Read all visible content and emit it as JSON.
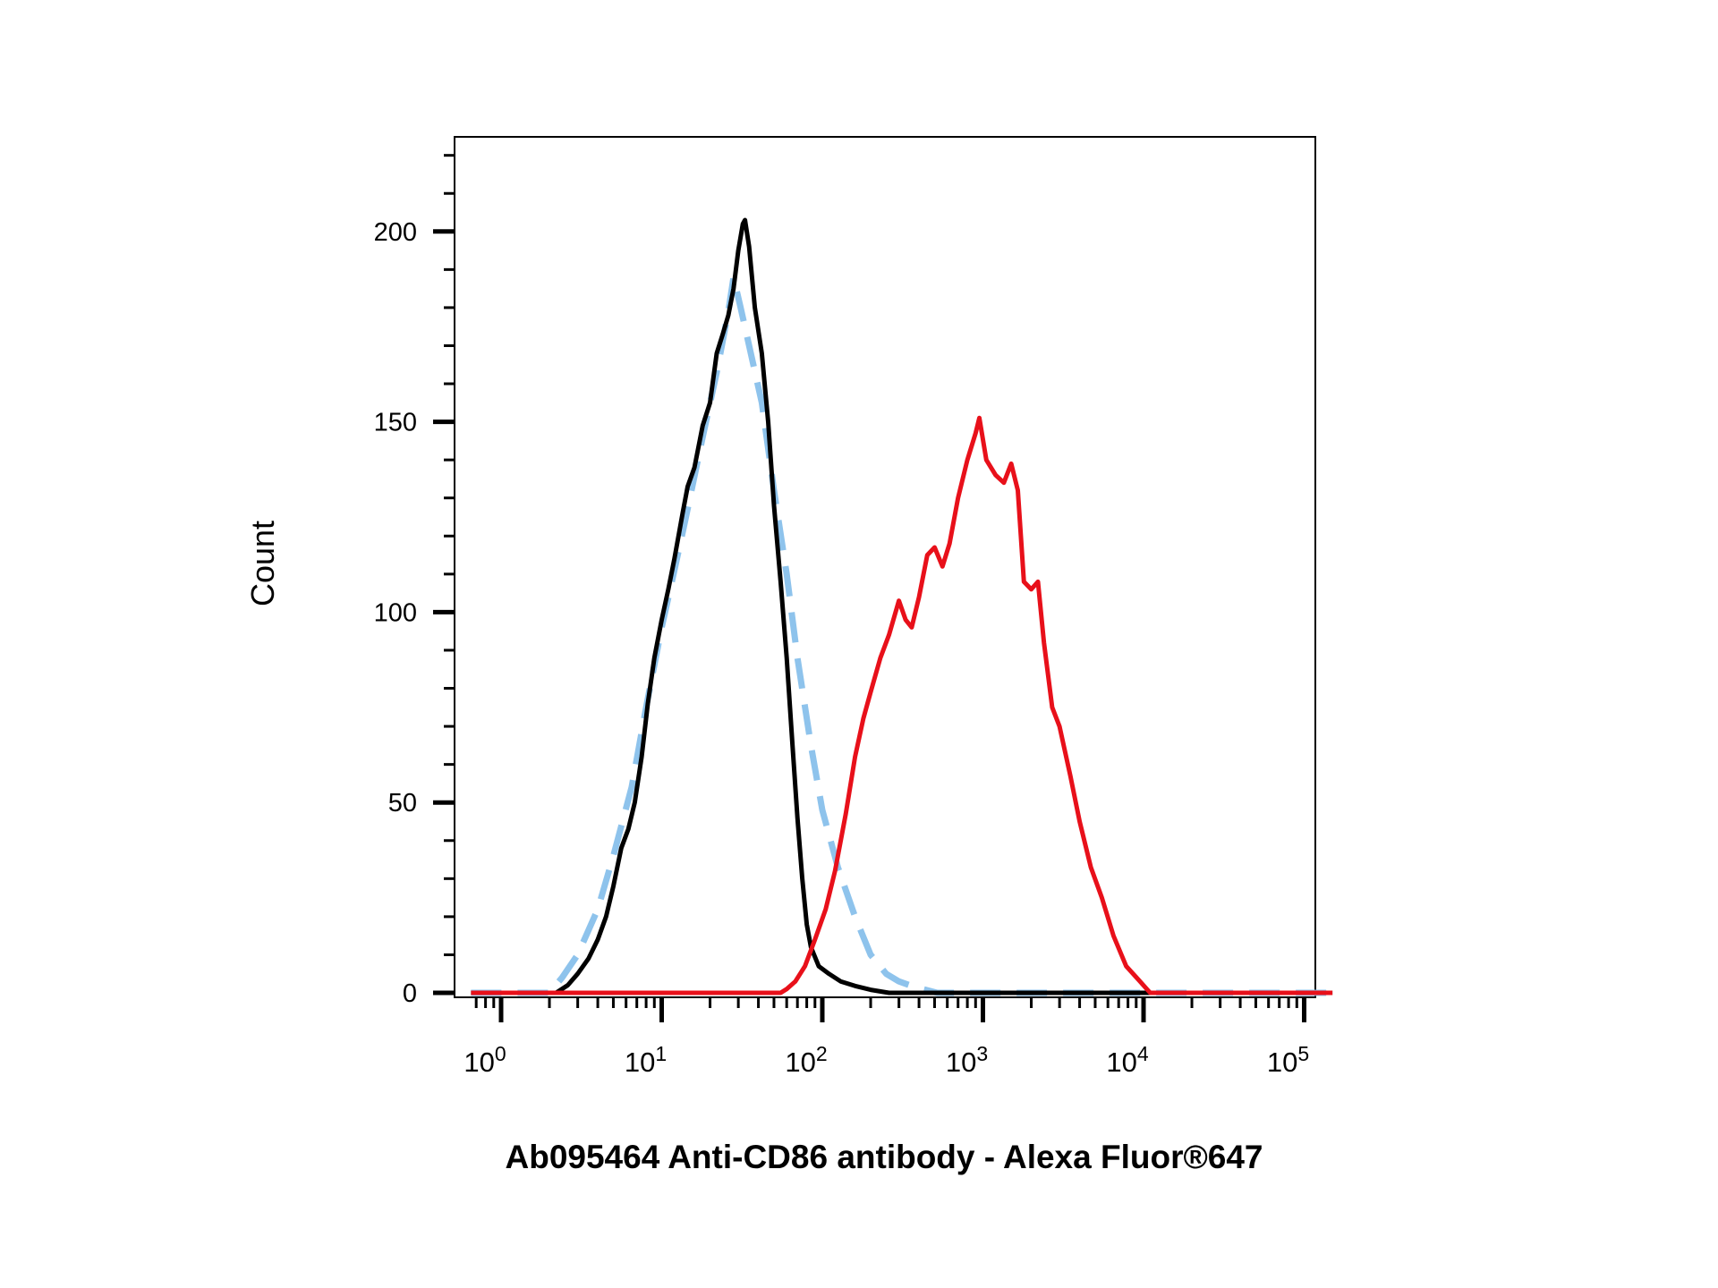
{
  "chart_data": {
    "type": "line",
    "title": "",
    "xlabel": "Ab095464 Anti-CD86 antibody - Alexa Fluor®647",
    "ylabel": "Count",
    "x_scale": "log",
    "xlim": [
      0.65,
      150000
    ],
    "ylim": [
      0,
      225
    ],
    "grid": false,
    "legend": "none",
    "x_ticks": [
      {
        "value": 1,
        "base": "10",
        "exp": "0"
      },
      {
        "value": 10,
        "base": "10",
        "exp": "1"
      },
      {
        "value": 100,
        "base": "10",
        "exp": "2"
      },
      {
        "value": 1000,
        "base": "10",
        "exp": "3"
      },
      {
        "value": 10000,
        "base": "10",
        "exp": "4"
      },
      {
        "value": 100000,
        "base": "10",
        "exp": "5"
      }
    ],
    "y_ticks": [
      {
        "value": 0,
        "label": "0"
      },
      {
        "value": 50,
        "label": "50"
      },
      {
        "value": 100,
        "label": "100"
      },
      {
        "value": 150,
        "label": "150"
      },
      {
        "value": 200,
        "label": "200"
      }
    ],
    "series": [
      {
        "color": "#000000",
        "dash": "solid",
        "points": [
          [
            0.65,
            0
          ],
          [
            2.2,
            0
          ],
          [
            2.6,
            2
          ],
          [
            3.0,
            5
          ],
          [
            3.5,
            9
          ],
          [
            4.0,
            14
          ],
          [
            4.5,
            20
          ],
          [
            5.0,
            28
          ],
          [
            5.6,
            38
          ],
          [
            6.2,
            43
          ],
          [
            6.8,
            50
          ],
          [
            7.5,
            62
          ],
          [
            8.2,
            76
          ],
          [
            9.0,
            88
          ],
          [
            10.0,
            98
          ],
          [
            11.0,
            106
          ],
          [
            12.0,
            114
          ],
          [
            13.5,
            126
          ],
          [
            14.5,
            133
          ],
          [
            16.0,
            138
          ],
          [
            18.0,
            149
          ],
          [
            20.0,
            155
          ],
          [
            22.0,
            168
          ],
          [
            24.0,
            173
          ],
          [
            26.0,
            178
          ],
          [
            28.0,
            185
          ],
          [
            30.0,
            195
          ],
          [
            32.0,
            202
          ],
          [
            33.0,
            203
          ],
          [
            35.0,
            196
          ],
          [
            38.0,
            180
          ],
          [
            42.0,
            168
          ],
          [
            46.0,
            150
          ],
          [
            50.0,
            128
          ],
          [
            55.0,
            108
          ],
          [
            60.0,
            88
          ],
          [
            65.0,
            66
          ],
          [
            70.0,
            46
          ],
          [
            75.0,
            30
          ],
          [
            80.0,
            18
          ],
          [
            85.0,
            12
          ],
          [
            95.0,
            7
          ],
          [
            110.0,
            5
          ],
          [
            130.0,
            3
          ],
          [
            160.0,
            1.8
          ],
          [
            200.0,
            0.8
          ],
          [
            260.0,
            0
          ],
          [
            150000,
            0
          ]
        ]
      },
      {
        "color": "#8ec3ec",
        "dash": "dashed",
        "points": [
          [
            0.65,
            0
          ],
          [
            2.0,
            0
          ],
          [
            2.4,
            4
          ],
          [
            3.0,
            10
          ],
          [
            4.0,
            22
          ],
          [
            5.0,
            36
          ],
          [
            6.5,
            54
          ],
          [
            8.0,
            75
          ],
          [
            10.0,
            96
          ],
          [
            12.0,
            111
          ],
          [
            14.0,
            124
          ],
          [
            18.0,
            146
          ],
          [
            22.0,
            163
          ],
          [
            26.0,
            179
          ],
          [
            28.0,
            188
          ],
          [
            31.0,
            180
          ],
          [
            35.0,
            170
          ],
          [
            42.0,
            155
          ],
          [
            50.0,
            132
          ],
          [
            60.0,
            110
          ],
          [
            70.0,
            88
          ],
          [
            85.0,
            65
          ],
          [
            100.0,
            48
          ],
          [
            125.0,
            33
          ],
          [
            160.0,
            20
          ],
          [
            200.0,
            10
          ],
          [
            250.0,
            5
          ],
          [
            300.0,
            3
          ],
          [
            350.0,
            2
          ],
          [
            420.0,
            1
          ],
          [
            520.0,
            0
          ],
          [
            150000,
            0
          ]
        ]
      },
      {
        "color": "#e8101a",
        "dash": "solid",
        "points": [
          [
            0.65,
            0
          ],
          [
            55.0,
            0
          ],
          [
            60.0,
            1
          ],
          [
            68.0,
            3
          ],
          [
            78.0,
            7
          ],
          [
            90.0,
            14
          ],
          [
            105.0,
            22
          ],
          [
            120.0,
            32
          ],
          [
            140.0,
            47
          ],
          [
            160.0,
            62
          ],
          [
            180.0,
            72
          ],
          [
            200.0,
            79
          ],
          [
            230.0,
            88
          ],
          [
            260.0,
            94
          ],
          [
            300.0,
            103
          ],
          [
            330.0,
            98
          ],
          [
            360.0,
            96
          ],
          [
            400.0,
            104
          ],
          [
            450.0,
            115
          ],
          [
            500.0,
            117
          ],
          [
            560.0,
            112
          ],
          [
            620.0,
            118
          ],
          [
            700.0,
            130
          ],
          [
            800.0,
            140
          ],
          [
            900.0,
            147
          ],
          [
            950.0,
            151
          ],
          [
            1050.0,
            140
          ],
          [
            1200.0,
            136
          ],
          [
            1350.0,
            134
          ],
          [
            1500.0,
            139
          ],
          [
            1650.0,
            132
          ],
          [
            1800.0,
            108
          ],
          [
            2000.0,
            106
          ],
          [
            2200.0,
            108
          ],
          [
            2400.0,
            92
          ],
          [
            2700.0,
            75
          ],
          [
            3000.0,
            70
          ],
          [
            3500.0,
            57
          ],
          [
            4000.0,
            45
          ],
          [
            4700.0,
            33
          ],
          [
            5500.0,
            25
          ],
          [
            6500.0,
            15
          ],
          [
            7800.0,
            7
          ],
          [
            9500.0,
            3
          ],
          [
            11000.0,
            0
          ],
          [
            150000,
            0
          ]
        ]
      }
    ]
  }
}
